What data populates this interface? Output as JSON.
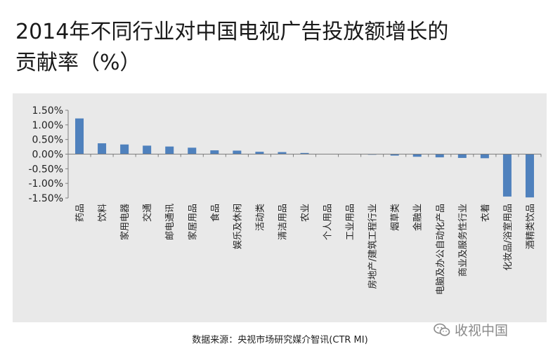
{
  "title_line1": "2014年不同行业对中国电视广告投放额增长的",
  "title_line2": "贡献率（%）",
  "source": "数据来源：央视市场研究媒介智讯(CTR MI)",
  "watermark": "收视中国",
  "watermark_icon": "wechat-icon",
  "colors": {
    "bar": "#4f81bd",
    "panel": "#e9e9e9",
    "axis": "#7f7f7f"
  },
  "chart_data": {
    "type": "bar",
    "categories": [
      "药品",
      "饮料",
      "家用电器",
      "交通",
      "邮电通讯",
      "家居用品",
      "食品",
      "娱乐及休闲",
      "活动类",
      "清洁用品",
      "农业",
      "个人用品",
      "工业用品",
      "房地产/建筑工程行业",
      "烟草类",
      "金融业",
      "电脑及办公自动化产品",
      "商业及服务性行业",
      "衣着",
      "化妆品/浴室用品",
      "酒精类饮品"
    ],
    "values": [
      1.22,
      0.37,
      0.33,
      0.29,
      0.26,
      0.22,
      0.13,
      0.12,
      0.08,
      0.07,
      0.04,
      0.0,
      0.0,
      -0.02,
      -0.05,
      -0.09,
      -0.11,
      -0.13,
      -0.14,
      -1.45,
      -1.48
    ],
    "ylim": [
      -1.5,
      1.5
    ],
    "yticks": [
      1.5,
      1.0,
      0.5,
      0.0,
      -0.5,
      -1.0,
      -1.5
    ],
    "ytick_labels": [
      "1.50%",
      "1.00%",
      "0.50%",
      "0.00%",
      "-0.50%",
      "-1.00%",
      "-1.50%"
    ],
    "grid": false,
    "legend": "none"
  }
}
